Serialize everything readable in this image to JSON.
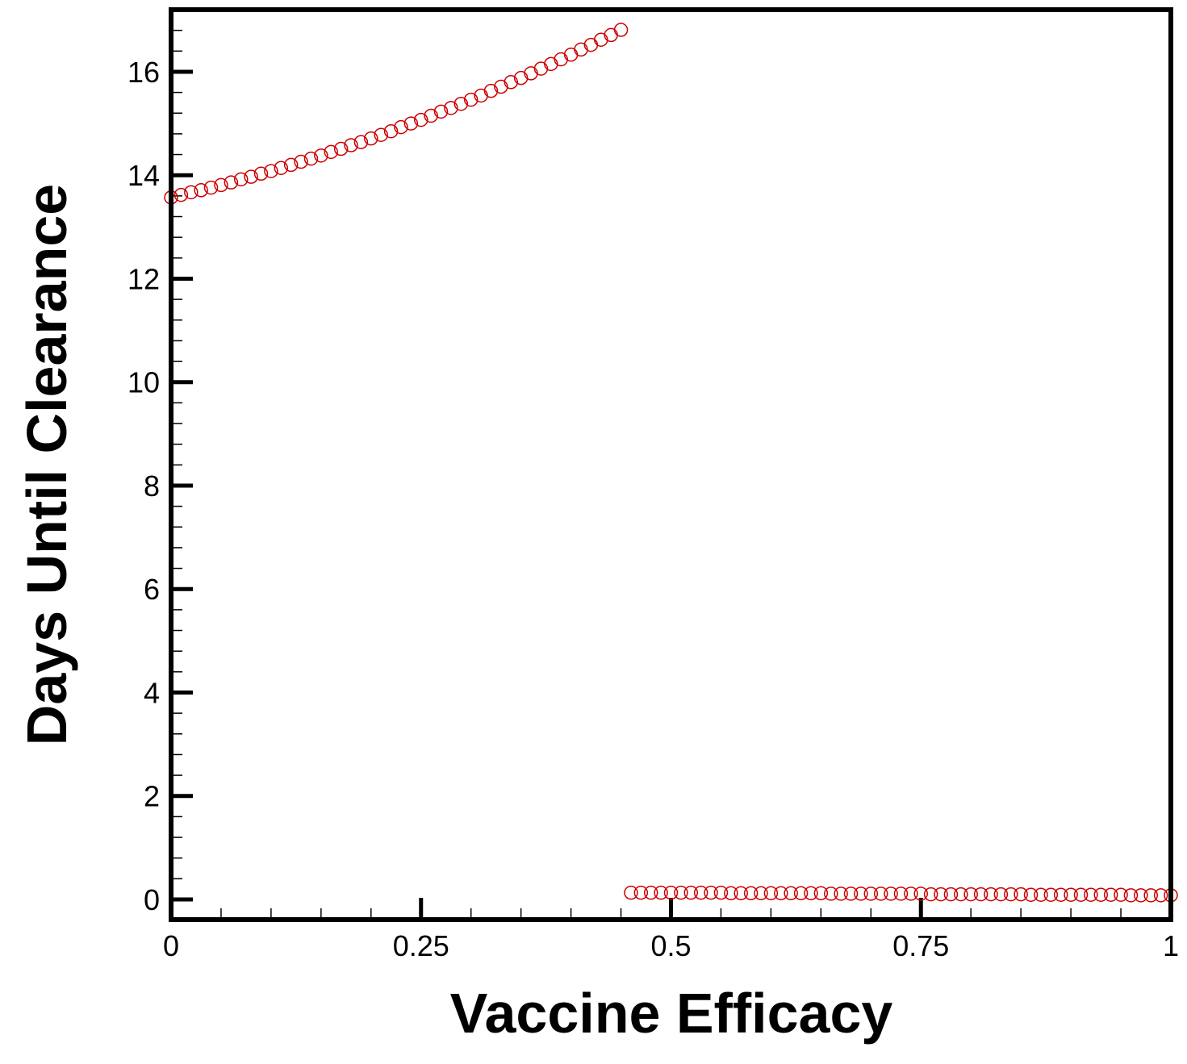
{
  "chart_data": {
    "type": "scatter",
    "xlabel": "Vaccine Efficacy",
    "ylabel": "Days Until Clearance",
    "color": "#cc0000",
    "x": [
      0,
      0.01,
      0.02,
      0.03,
      0.04,
      0.05,
      0.06,
      0.07,
      0.08,
      0.09,
      0.1,
      0.11,
      0.12,
      0.13,
      0.14,
      0.15,
      0.16,
      0.17,
      0.18,
      0.19,
      0.2,
      0.21,
      0.22,
      0.23,
      0.24,
      0.25,
      0.26,
      0.27,
      0.28,
      0.29,
      0.3,
      0.31,
      0.32,
      0.33,
      0.34,
      0.35,
      0.36,
      0.37,
      0.38,
      0.39,
      0.4,
      0.41,
      0.42,
      0.43,
      0.44,
      0.45,
      0.46,
      0.47,
      0.48,
      0.49,
      0.5,
      0.51,
      0.52,
      0.53,
      0.54,
      0.55,
      0.56,
      0.57,
      0.58,
      0.59,
      0.6,
      0.61,
      0.62,
      0.63,
      0.64,
      0.65,
      0.66,
      0.67,
      0.68,
      0.69,
      0.7,
      0.71,
      0.72,
      0.73,
      0.74,
      0.75,
      0.76,
      0.77,
      0.78,
      0.79,
      0.8,
      0.81,
      0.82,
      0.83,
      0.84,
      0.85,
      0.86,
      0.87,
      0.88,
      0.89,
      0.9,
      0.91,
      0.92,
      0.93,
      0.94,
      0.95,
      0.96,
      0.97,
      0.98,
      0.99,
      1
    ],
    "values": [
      13.57,
      13.62,
      13.67,
      13.71,
      13.76,
      13.81,
      13.86,
      13.92,
      13.97,
      14.03,
      14.08,
      14.14,
      14.2,
      14.26,
      14.32,
      14.38,
      14.45,
      14.51,
      14.58,
      14.64,
      14.71,
      14.78,
      14.85,
      14.93,
      15.0,
      15.07,
      15.15,
      15.23,
      15.3,
      15.38,
      15.46,
      15.54,
      15.63,
      15.71,
      15.8,
      15.88,
      15.97,
      16.06,
      16.15,
      16.24,
      16.33,
      16.43,
      16.52,
      16.62,
      16.71,
      16.81,
      0.13,
      0.13,
      0.13,
      0.13,
      0.13,
      0.13,
      0.13,
      0.13,
      0.13,
      0.13,
      0.12,
      0.12,
      0.12,
      0.12,
      0.12,
      0.12,
      0.12,
      0.12,
      0.12,
      0.12,
      0.11,
      0.11,
      0.11,
      0.11,
      0.11,
      0.11,
      0.11,
      0.11,
      0.11,
      0.11,
      0.1,
      0.1,
      0.1,
      0.1,
      0.1,
      0.1,
      0.1,
      0.1,
      0.1,
      0.1,
      0.09,
      0.09,
      0.09,
      0.09,
      0.09,
      0.09,
      0.09,
      0.09,
      0.09,
      0.09,
      0.08,
      0.08,
      0.08,
      0.08,
      0.08
    ],
    "xlim": [
      0,
      1
    ],
    "ylim": [
      -0.39,
      17.2
    ],
    "xticks": [
      0,
      0.25,
      0.5,
      0.75,
      1
    ],
    "yticks": [
      0,
      2,
      4,
      6,
      8,
      10,
      12,
      14,
      16
    ],
    "xminorticks": [
      0.05,
      0.1,
      0.15,
      0.2,
      0.3,
      0.35,
      0.4,
      0.45,
      0.55,
      0.6,
      0.65,
      0.7,
      0.8,
      0.85,
      0.9,
      0.95
    ],
    "yminorticks": [
      0.4,
      0.8,
      1.2,
      1.6,
      2.4,
      2.8,
      3.2,
      3.6,
      4.4,
      4.8,
      5.2,
      5.6,
      6.4,
      6.8,
      7.2,
      7.6,
      8.4,
      8.8,
      9.2,
      9.6,
      10.4,
      10.8,
      11.2,
      11.6,
      12.4,
      12.8,
      13.2,
      13.6,
      14.4,
      14.8,
      15.2,
      15.6,
      16.4,
      16.8
    ]
  }
}
